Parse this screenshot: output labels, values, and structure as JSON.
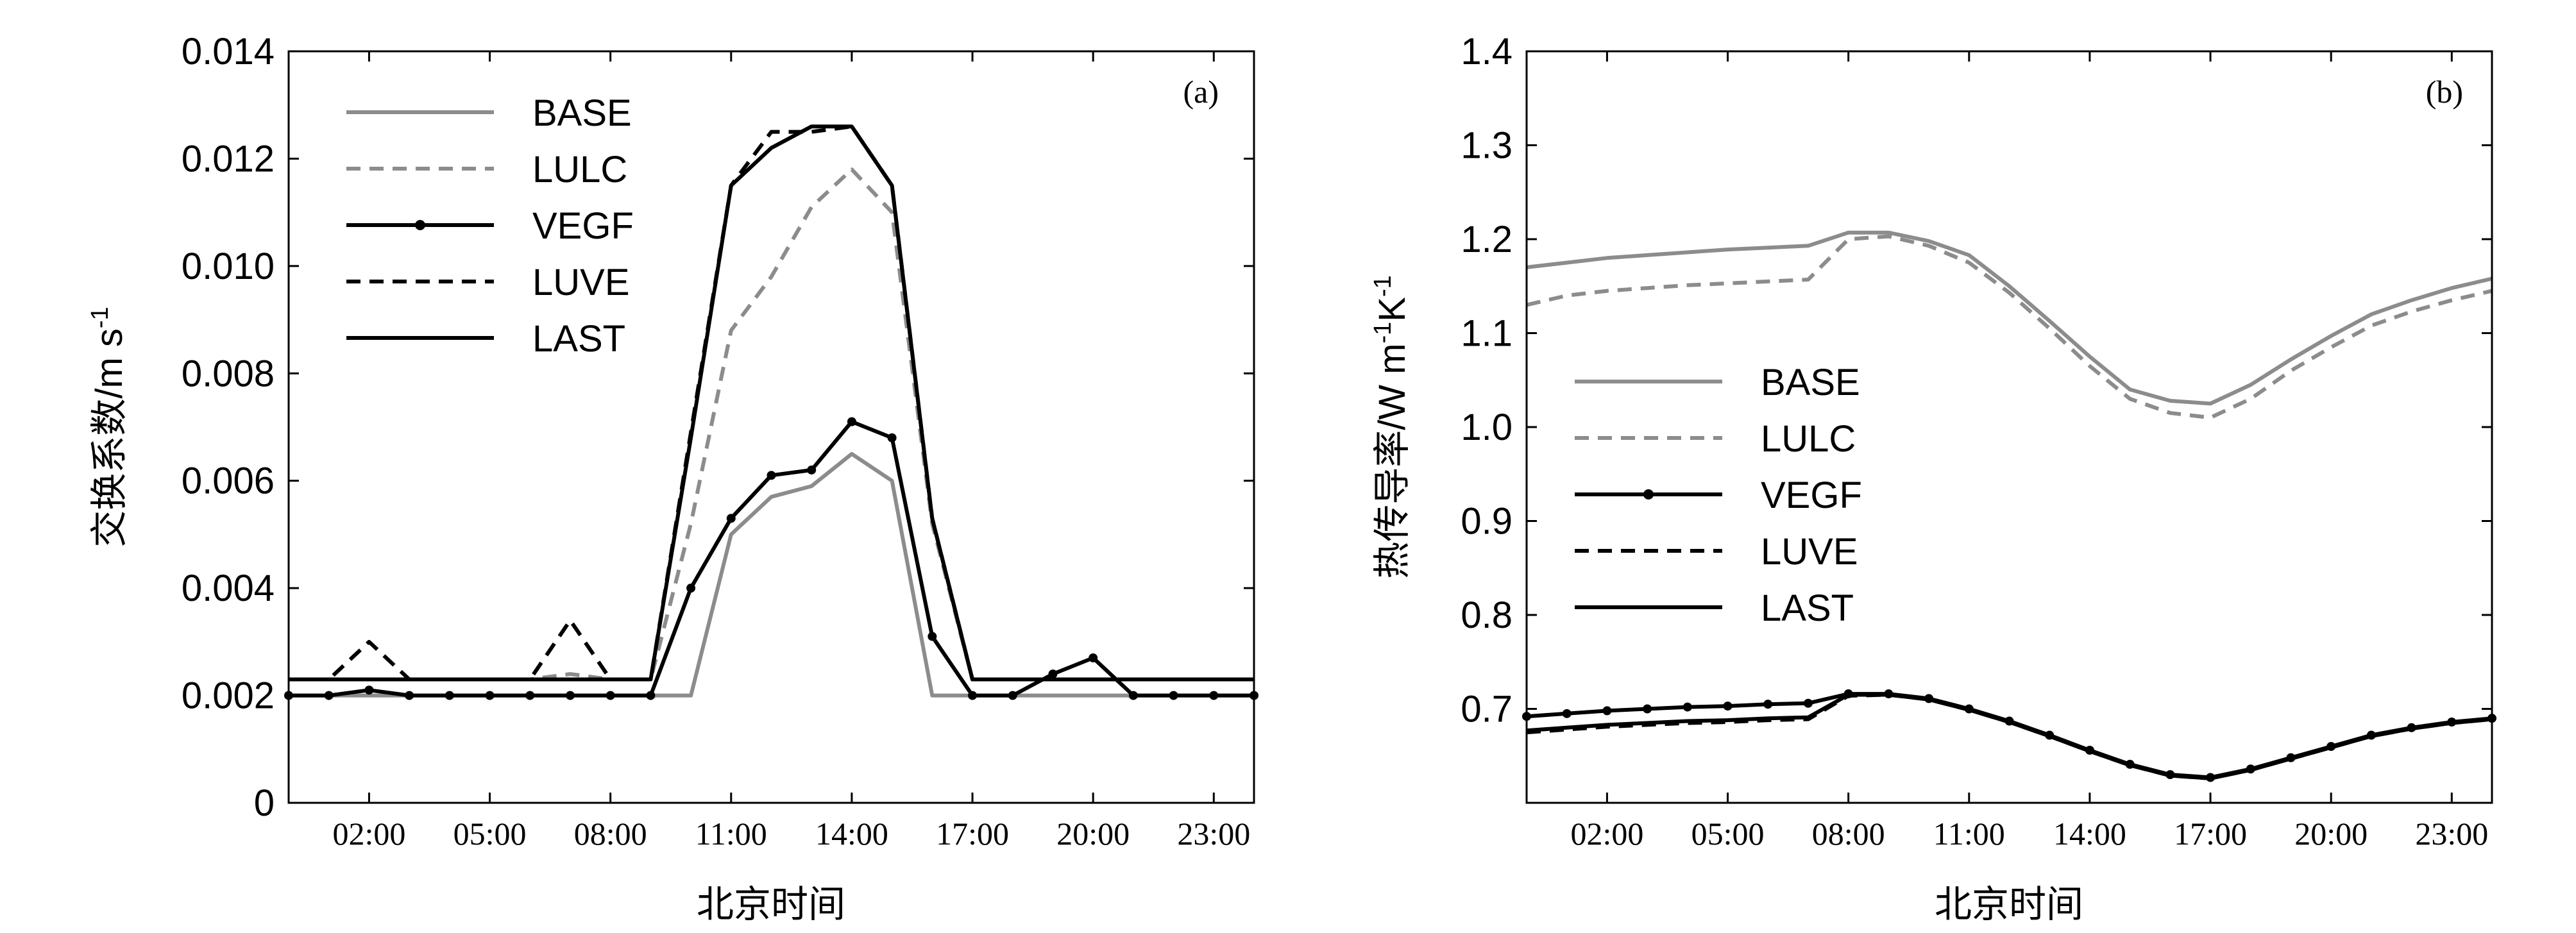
{
  "chart_data": [
    {
      "type": "line",
      "panel_label": "(a)",
      "xlabel": "北京时间",
      "ylabel": "交换系数/m s-1",
      "ylabel_main": "交换系数/m s",
      "ylabel_sup": "-1",
      "xlim": [
        0,
        24
      ],
      "ylim": [
        0,
        0.014
      ],
      "xticks": [
        2,
        5,
        8,
        11,
        14,
        17,
        20,
        23
      ],
      "xtick_labels": [
        "02:00",
        "05:00",
        "08:00",
        "11:00",
        "14:00",
        "17:00",
        "20:00",
        "23:00"
      ],
      "yticks": [
        0,
        0.002,
        0.004,
        0.006,
        0.008,
        0.01,
        0.012,
        0.014
      ],
      "ytick_labels": [
        "0",
        "0.002",
        "0.004",
        "0.006",
        "0.008",
        "0.010",
        "0.012",
        "0.014"
      ],
      "legend_position": "top-left",
      "x": [
        0,
        1,
        2,
        3,
        4,
        5,
        6,
        7,
        8,
        9,
        10,
        11,
        12,
        13,
        14,
        15,
        16,
        17,
        18,
        19,
        20,
        21,
        22,
        23,
        24
      ],
      "series": [
        {
          "name": "BASE",
          "color": "#8c8c8c",
          "style": "solid",
          "marker": false,
          "values": [
            0.002,
            0.002,
            0.002,
            0.002,
            0.002,
            0.002,
            0.002,
            0.002,
            0.002,
            0.002,
            0.002,
            0.005,
            0.0057,
            0.0059,
            0.0065,
            0.006,
            0.002,
            0.002,
            0.002,
            0.002,
            0.002,
            0.002,
            0.002,
            0.002,
            0.002
          ]
        },
        {
          "name": "LULC",
          "color": "#8c8c8c",
          "style": "dashed",
          "marker": false,
          "values": [
            0.0023,
            0.0023,
            0.0023,
            0.0023,
            0.0023,
            0.0023,
            0.0023,
            0.0024,
            0.0023,
            0.0023,
            0.0052,
            0.0088,
            0.0098,
            0.0111,
            0.0118,
            0.011,
            0.0052,
            0.0023,
            0.0023,
            0.0023,
            0.0023,
            0.0023,
            0.0023,
            0.0023,
            0.0023
          ]
        },
        {
          "name": "VEGF",
          "color": "#000000",
          "style": "solid",
          "marker": true,
          "values": [
            0.002,
            0.002,
            0.0021,
            0.002,
            0.002,
            0.002,
            0.002,
            0.002,
            0.002,
            0.002,
            0.004,
            0.0053,
            0.0061,
            0.0062,
            0.0071,
            0.0068,
            0.0031,
            0.002,
            0.002,
            0.0024,
            0.0027,
            0.002,
            0.002,
            0.002,
            0.002
          ]
        },
        {
          "name": "LUVE",
          "color": "#000000",
          "style": "dashed",
          "marker": false,
          "values": [
            0.0023,
            0.0023,
            0.003,
            0.0023,
            0.0023,
            0.0023,
            0.0023,
            0.0034,
            0.0023,
            0.0023,
            0.0069,
            0.0115,
            0.0125,
            0.0125,
            0.0126,
            0.0115,
            0.0053,
            0.0023,
            0.0023,
            0.0023,
            0.0023,
            0.0023,
            0.0023,
            0.0023,
            0.0023
          ]
        },
        {
          "name": "LAST",
          "color": "#000000",
          "style": "solid",
          "marker": false,
          "values": [
            0.0023,
            0.0023,
            0.0023,
            0.0023,
            0.0023,
            0.0023,
            0.0023,
            0.0023,
            0.0023,
            0.0023,
            0.0068,
            0.0115,
            0.0122,
            0.0126,
            0.0126,
            0.0115,
            0.0053,
            0.0023,
            0.0023,
            0.0023,
            0.0023,
            0.0023,
            0.0023,
            0.0023,
            0.0023
          ]
        }
      ]
    },
    {
      "type": "line",
      "panel_label": "(b)",
      "xlabel": "北京时间",
      "ylabel": "热传导率/W m-1K-1",
      "ylabel_main": "热传导率/W m",
      "ylabel_sup1": "-1",
      "ylabel_mid": "K",
      "ylabel_sup2": "-1",
      "xlim": [
        0,
        24
      ],
      "ylim": [
        0.6,
        1.4
      ],
      "xticks": [
        2,
        5,
        8,
        11,
        14,
        17,
        20,
        23
      ],
      "xtick_labels": [
        "02:00",
        "05:00",
        "08:00",
        "11:00",
        "14:00",
        "17:00",
        "20:00",
        "23:00"
      ],
      "yticks": [
        0.7,
        0.8,
        0.9,
        1.0,
        1.1,
        1.2,
        1.3,
        1.4
      ],
      "ytick_labels": [
        "0.7",
        "0.8",
        "0.9",
        "1.0",
        "1.1",
        "1.2",
        "1.3",
        "1.4"
      ],
      "legend_position": "middle-left",
      "x": [
        0,
        1,
        2,
        3,
        4,
        5,
        6,
        7,
        8,
        9,
        10,
        11,
        12,
        13,
        14,
        15,
        16,
        17,
        18,
        19,
        20,
        21,
        22,
        23,
        24
      ],
      "series": [
        {
          "name": "BASE",
          "color": "#8c8c8c",
          "style": "solid",
          "marker": false,
          "values": [
            1.17,
            1.175,
            1.18,
            1.183,
            1.186,
            1.189,
            1.191,
            1.193,
            1.207,
            1.207,
            1.198,
            1.183,
            1.15,
            1.113,
            1.075,
            1.04,
            1.028,
            1.025,
            1.045,
            1.072,
            1.097,
            1.12,
            1.135,
            1.148,
            1.158
          ]
        },
        {
          "name": "LULC",
          "color": "#8c8c8c",
          "style": "dashed",
          "marker": false,
          "values": [
            1.13,
            1.14,
            1.145,
            1.148,
            1.151,
            1.153,
            1.155,
            1.157,
            1.2,
            1.203,
            1.193,
            1.175,
            1.143,
            1.105,
            1.065,
            1.03,
            1.015,
            1.01,
            1.03,
            1.06,
            1.085,
            1.108,
            1.123,
            1.135,
            1.145
          ]
        },
        {
          "name": "VEGF",
          "color": "#000000",
          "style": "solid",
          "marker": true,
          "values": [
            0.692,
            0.695,
            0.698,
            0.7,
            0.702,
            0.703,
            0.705,
            0.706,
            0.716,
            0.716,
            0.711,
            0.7,
            0.687,
            0.672,
            0.656,
            0.641,
            0.63,
            0.627,
            0.636,
            0.648,
            0.66,
            0.672,
            0.68,
            0.686,
            0.69
          ]
        },
        {
          "name": "LUVE",
          "color": "#000000",
          "style": "dashed",
          "marker": false,
          "values": [
            0.675,
            0.678,
            0.681,
            0.683,
            0.685,
            0.686,
            0.688,
            0.689,
            0.714,
            0.715,
            0.71,
            0.699,
            0.686,
            0.671,
            0.655,
            0.64,
            0.629,
            0.626,
            0.635,
            0.647,
            0.659,
            0.671,
            0.679,
            0.685,
            0.689
          ]
        },
        {
          "name": "LAST",
          "color": "#000000",
          "style": "solid",
          "marker": false,
          "values": [
            0.677,
            0.68,
            0.683,
            0.685,
            0.687,
            0.688,
            0.69,
            0.691,
            0.715,
            0.715,
            0.71,
            0.699,
            0.686,
            0.671,
            0.655,
            0.64,
            0.629,
            0.626,
            0.635,
            0.647,
            0.659,
            0.671,
            0.679,
            0.685,
            0.689
          ]
        }
      ]
    }
  ]
}
